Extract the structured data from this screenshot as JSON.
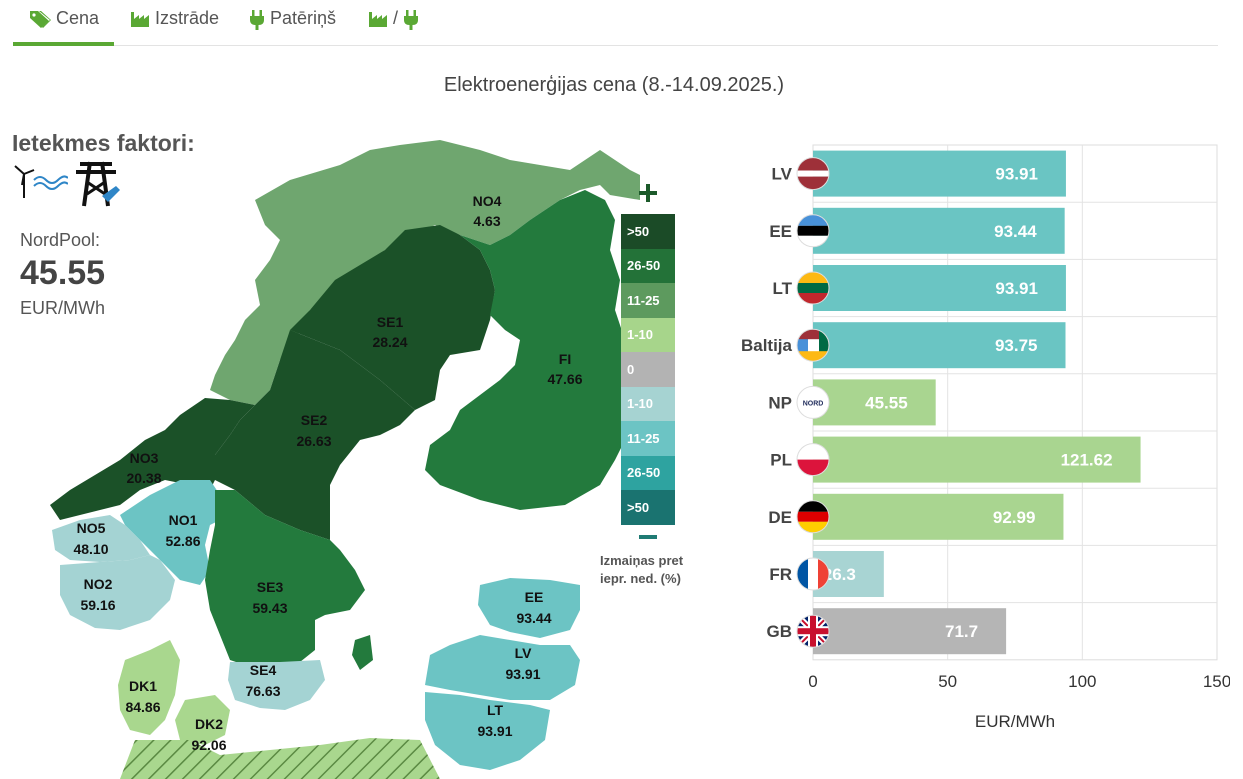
{
  "tabs": [
    {
      "label": "Cena",
      "icon": "price-tag-icon",
      "active": true
    },
    {
      "label": "Izstrāde",
      "icon": "factory-icon",
      "active": false
    },
    {
      "label": "Patēriņš",
      "icon": "plug-icon",
      "active": false
    },
    {
      "label": "/",
      "icon": "factory-plug-icon",
      "active": false
    }
  ],
  "title": "Elektroenerģijas cena (8.-14.09.2025.)",
  "factors": {
    "title": "Ietekmes faktori:",
    "icons": [
      "wind-turbine-icon",
      "power-line-repair-icon"
    ]
  },
  "nordpool": {
    "label": "NordPool:",
    "value": "45.55",
    "unit": "EUR/MWh"
  },
  "map": {
    "regions": [
      {
        "code": "NO4",
        "value": "4.63",
        "color": "#6fa66f"
      },
      {
        "code": "SE1",
        "value": "28.24",
        "color": "#1b5128"
      },
      {
        "code": "FI",
        "value": "47.66",
        "color": "#237a3d"
      },
      {
        "code": "SE2",
        "value": "26.63",
        "color": "#1b5128"
      },
      {
        "code": "NO3",
        "value": "20.38",
        "color": "#1b5128"
      },
      {
        "code": "NO1",
        "value": "52.86",
        "color": "#6cc4c4"
      },
      {
        "code": "NO5",
        "value": "48.10",
        "color": "#a4d3d3"
      },
      {
        "code": "NO2",
        "value": "59.16",
        "color": "#a4d3d3"
      },
      {
        "code": "SE3",
        "value": "59.43",
        "color": "#237a3d"
      },
      {
        "code": "SE4",
        "value": "76.63",
        "color": "#a4d3d3"
      },
      {
        "code": "DK1",
        "value": "84.86",
        "color": "#a9d78e"
      },
      {
        "code": "DK2",
        "value": "92.06",
        "color": "#a9d78e"
      },
      {
        "code": "EE",
        "value": "93.44",
        "color": "#6cc4c4"
      },
      {
        "code": "LV",
        "value": "93.91",
        "color": "#6cc4c4"
      },
      {
        "code": "LT",
        "value": "93.91",
        "color": "#6cc4c4"
      }
    ],
    "legend": [
      {
        "label": ">50",
        "color": "#1b4b27"
      },
      {
        "label": "26-50",
        "color": "#237238"
      },
      {
        "label": "11-25",
        "color": "#5d9a5e"
      },
      {
        "label": "1-10",
        "color": "#a7d58b"
      },
      {
        "label": "0",
        "color": "#b3b3b3"
      },
      {
        "label": "1-10",
        "color": "#a6d3d2"
      },
      {
        "label": "11-25",
        "color": "#6cc4c4"
      },
      {
        "label": "26-50",
        "color": "#2ea3a0"
      },
      {
        "label": ">50",
        "color": "#1a7370"
      }
    ],
    "legend_caption": "Izmaiņas pret iepr. ned. (%)"
  },
  "chart_data": {
    "type": "bar",
    "orientation": "horizontal",
    "categories": [
      "LV",
      "EE",
      "LT",
      "Baltija",
      "NP",
      "PL",
      "DE",
      "FR",
      "GB"
    ],
    "values": [
      93.91,
      93.44,
      93.91,
      93.75,
      45.55,
      121.62,
      92.99,
      26.3,
      71.7
    ],
    "value_labels": [
      "93.91",
      "93.44",
      "93.91",
      "93.75",
      "45.55",
      "121.62",
      "92.99",
      "26.3",
      "71.7"
    ],
    "bar_colors": [
      "#6ac5c3",
      "#6ac5c3",
      "#6ac5c3",
      "#6ac5c3",
      "#a9d590",
      "#a9d590",
      "#a9d590",
      "#a8d4d3",
      "#b5b5b5"
    ],
    "flag_icons": [
      "latvia-flag-icon",
      "estonia-flag-icon",
      "lithuania-flag-icon",
      "baltic-flags-icon",
      "nordpool-logo-icon",
      "poland-flag-icon",
      "germany-flag-icon",
      "france-flag-icon",
      "uk-flag-icon"
    ],
    "xlabel": "EUR/MWh",
    "xlim": [
      0,
      150
    ],
    "xticks": [
      "0",
      "50",
      "100",
      "150"
    ],
    "grid": true
  }
}
